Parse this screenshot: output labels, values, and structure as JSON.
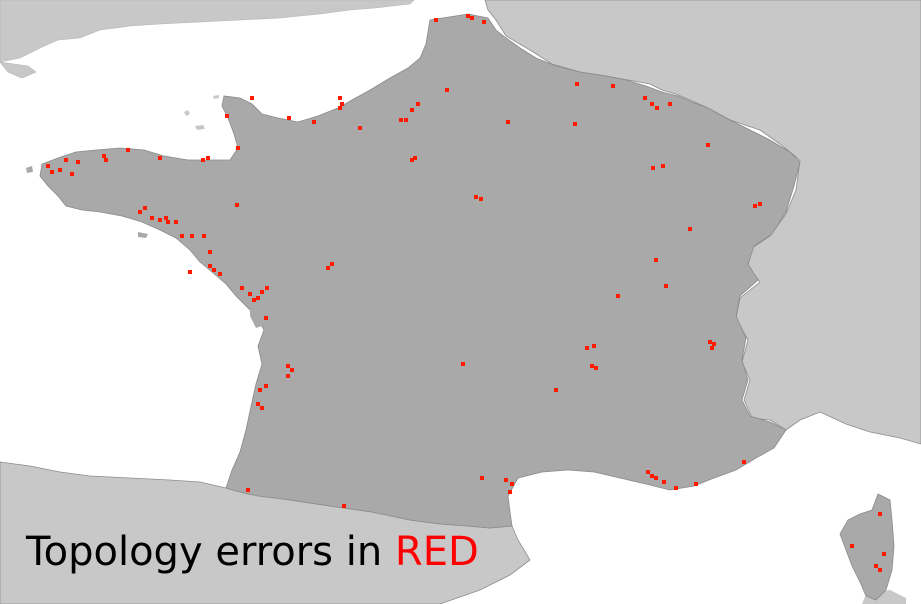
{
  "caption": {
    "prefix": "Topology errors in ",
    "highlight": "RED"
  },
  "colors": {
    "sea": "#ffffff",
    "neighbour_land": "#c8c8c8",
    "france_fill": "#a9a9a9",
    "border_line": "#8c8c8c",
    "error": "#ff1a00",
    "highlight_text": "#ff0000"
  },
  "legend": {
    "error_color_name": "RED"
  }
}
